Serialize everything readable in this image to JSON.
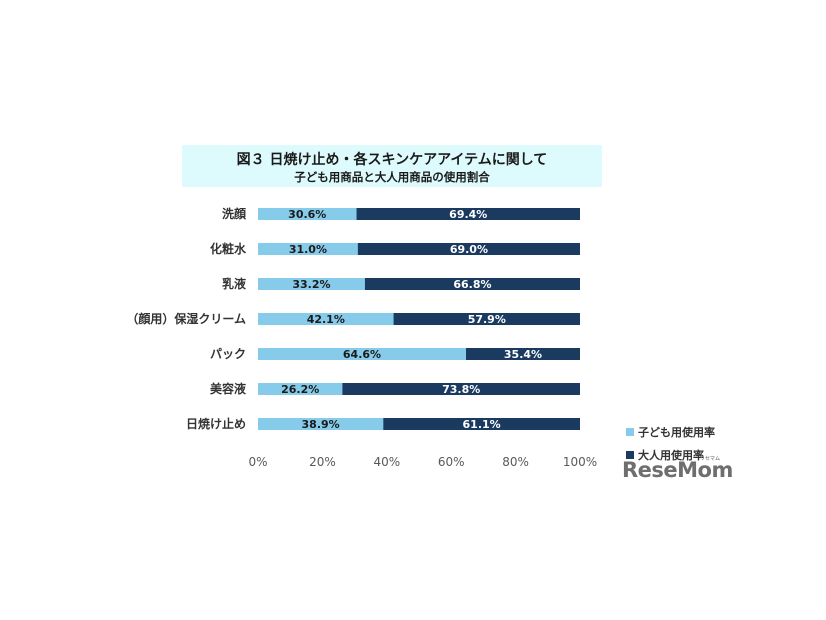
{
  "chart_data": {
    "type": "bar",
    "orientation": "horizontal",
    "stacked": true,
    "title": "図３ 日焼け止め・各スキンケアアイテムに関して",
    "subtitle": "子ども用商品と大人用商品の使用割合",
    "categories": [
      "洗顔",
      "化粧水",
      "乳液",
      "（顔用）保湿クリーム",
      "パック",
      "美容液",
      "日焼け止め"
    ],
    "series": [
      {
        "name": "子ども用使用率",
        "color": "#87cbea",
        "values": [
          30.6,
          31.0,
          33.2,
          42.1,
          64.6,
          26.2,
          38.9
        ],
        "labels": [
          "30.6%",
          "31.0%",
          "33.2%",
          "42.1%",
          "64.6%",
          "26.2%",
          "38.9%"
        ]
      },
      {
        "name": "大人用使用率",
        "color": "#1a3a60",
        "values": [
          69.4,
          69.0,
          66.8,
          57.9,
          35.4,
          73.8,
          61.1
        ],
        "labels": [
          "69.4%",
          "69.0%",
          "66.8%",
          "57.9%",
          "35.4%",
          "73.8%",
          "61.1%"
        ]
      }
    ],
    "xlim": [
      0,
      100
    ],
    "xticks": [
      "0%",
      "20%",
      "40%",
      "60%",
      "80%",
      "100%"
    ],
    "grid": false,
    "legend_position": "bottom-right"
  },
  "brand": {
    "logo": "ReseMom",
    "kana": "リセマム"
  }
}
